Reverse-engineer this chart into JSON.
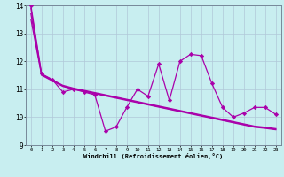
{
  "x": [
    0,
    1,
    2,
    3,
    4,
    5,
    6,
    7,
    8,
    9,
    10,
    11,
    12,
    13,
    14,
    15,
    16,
    17,
    18,
    19,
    20,
    21,
    22,
    23
  ],
  "y_main": [
    14.0,
    11.55,
    11.35,
    10.9,
    11.0,
    10.9,
    10.8,
    9.5,
    9.65,
    10.35,
    11.0,
    10.75,
    11.9,
    10.6,
    12.0,
    12.25,
    12.2,
    11.2,
    10.35,
    10.0,
    10.15,
    10.35,
    10.35,
    10.1
  ],
  "y_trend1": [
    13.5,
    11.5,
    11.3,
    11.1,
    11.0,
    10.92,
    10.84,
    10.76,
    10.68,
    10.6,
    10.52,
    10.44,
    10.36,
    10.28,
    10.2,
    10.12,
    10.04,
    9.96,
    9.88,
    9.8,
    9.72,
    9.64,
    9.6,
    9.55
  ],
  "y_trend2": [
    13.7,
    11.52,
    11.32,
    11.12,
    11.02,
    10.94,
    10.86,
    10.78,
    10.7,
    10.62,
    10.54,
    10.46,
    10.38,
    10.3,
    10.22,
    10.14,
    10.06,
    9.98,
    9.9,
    9.82,
    9.74,
    9.66,
    9.62,
    9.57
  ],
  "y_trend3": [
    13.9,
    11.54,
    11.34,
    11.14,
    11.04,
    10.96,
    10.88,
    10.8,
    10.72,
    10.64,
    10.56,
    10.48,
    10.4,
    10.32,
    10.24,
    10.16,
    10.08,
    10.0,
    9.92,
    9.84,
    9.76,
    9.68,
    9.64,
    9.59
  ],
  "line_color": "#aa00aa",
  "bg_color": "#c8eef0",
  "grid_color": "#b0c8d8",
  "ylim": [
    9,
    14
  ],
  "xlim": [
    -0.5,
    23.5
  ],
  "yticks": [
    9,
    10,
    11,
    12,
    13,
    14
  ],
  "xticks": [
    0,
    1,
    2,
    3,
    4,
    5,
    6,
    7,
    8,
    9,
    10,
    11,
    12,
    13,
    14,
    15,
    16,
    17,
    18,
    19,
    20,
    21,
    22,
    23
  ],
  "xlabel": "Windchill (Refroidissement éolien,°C)",
  "marker": "D",
  "markersize": 2.2,
  "linewidth": 0.9
}
